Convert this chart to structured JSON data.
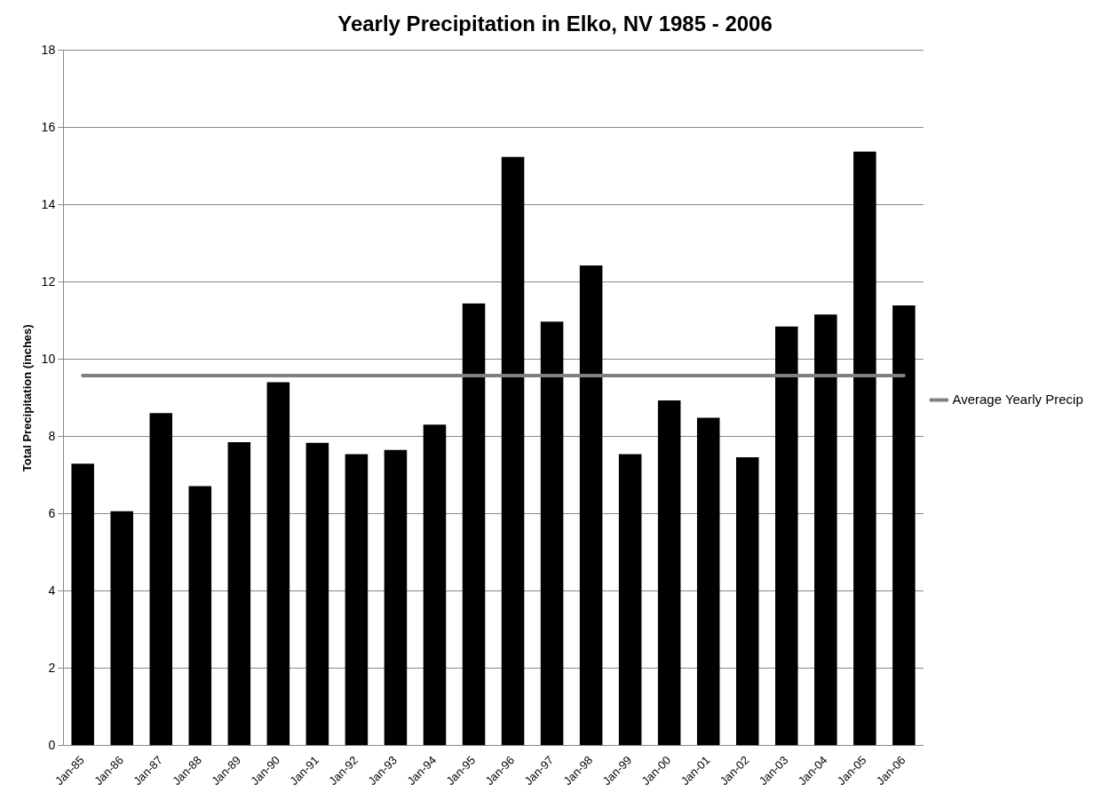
{
  "chart_data": {
    "type": "bar",
    "title": "Yearly Precipitation in Elko, NV 1985 - 2006",
    "ylabel": "Total Precipitation (inches)",
    "categories": [
      "Jan-85",
      "Jan-86",
      "Jan-87",
      "Jan-88",
      "Jan-89",
      "Jan-90",
      "Jan-91",
      "Jan-92",
      "Jan-93",
      "Jan-94",
      "Jan-95",
      "Jan-96",
      "Jan-97",
      "Jan-98",
      "Jan-99",
      "Jan-00",
      "Jan-01",
      "Jan-02",
      "Jan-03",
      "Jan-04",
      "Jan-05",
      "Jan-06"
    ],
    "series": [
      {
        "color": "#000000",
        "values": [
          7.3,
          6.07,
          8.61,
          6.72,
          7.86,
          9.41,
          7.84,
          7.55,
          7.66,
          8.31,
          11.45,
          15.24,
          10.98,
          12.43,
          7.55,
          8.94,
          8.49,
          7.47,
          10.85,
          11.16,
          15.38,
          11.4
        ]
      },
      {
        "type": "line",
        "name": "Average Yearly Precip",
        "color": "#808080",
        "values": [
          9.58,
          9.58,
          9.58,
          9.58,
          9.58,
          9.58,
          9.58,
          9.58,
          9.58,
          9.58,
          9.58,
          9.58,
          9.58,
          9.58,
          9.58,
          9.58,
          9.58,
          9.58,
          9.58,
          9.58,
          9.58,
          9.58
        ]
      }
    ],
    "ylim": [
      0,
      18
    ],
    "yticks": [
      0,
      2,
      4,
      6,
      8,
      10,
      12,
      14,
      16,
      18
    ],
    "grid": "y",
    "legend": "right",
    "marker": "none"
  }
}
